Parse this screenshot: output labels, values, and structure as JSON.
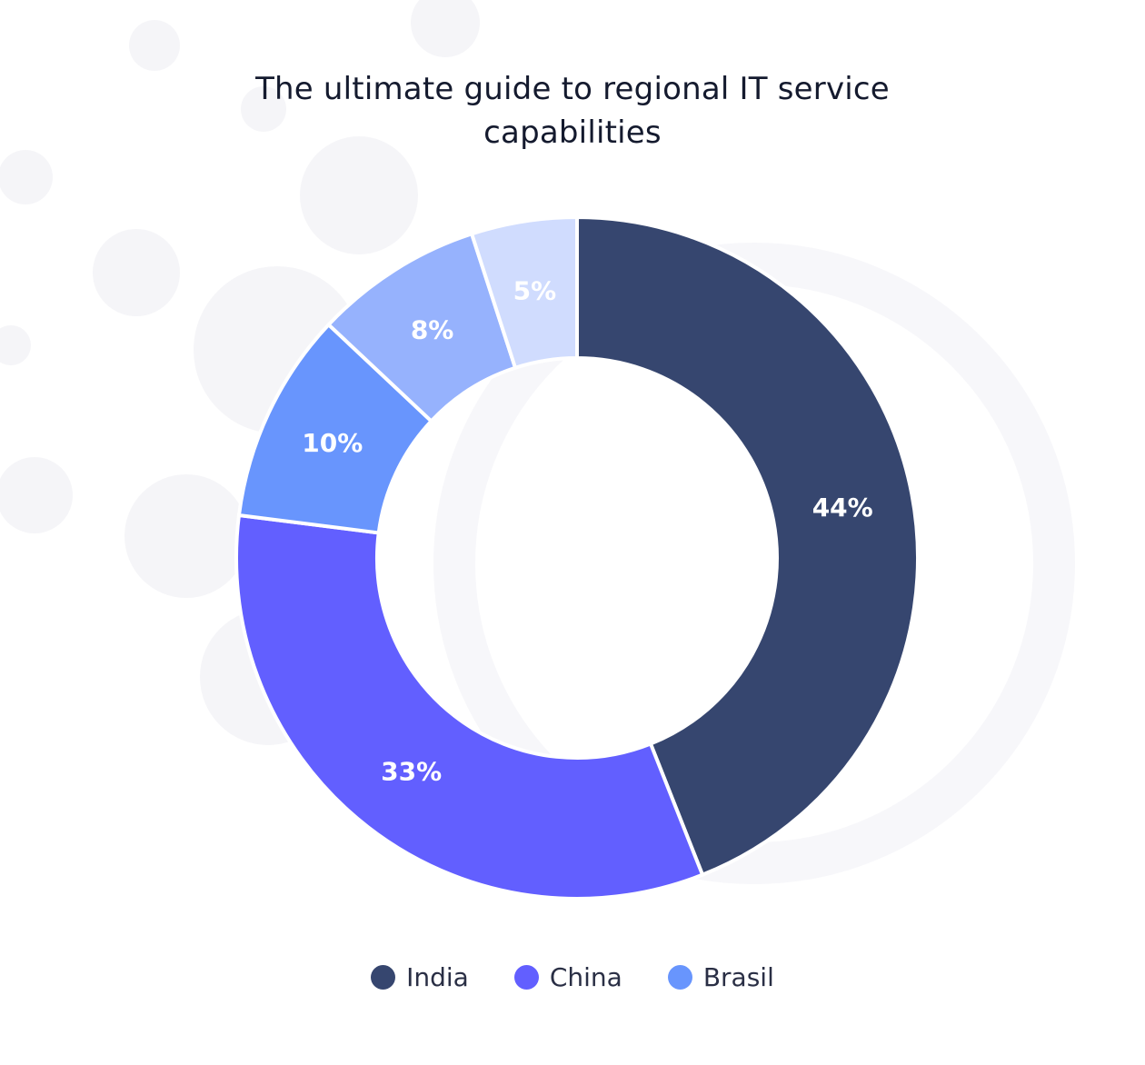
{
  "chart_data": {
    "type": "pie",
    "style": "donut",
    "title": "The ultimate guide to regional IT service capabilities",
    "slices": [
      {
        "value": 44,
        "label": "44%",
        "color": "#36466f"
      },
      {
        "value": 33,
        "label": "33%",
        "color": "#625fff"
      },
      {
        "value": 10,
        "label": "10%",
        "color": "#6895fd"
      },
      {
        "value": 8,
        "label": "8%",
        "color": "#96b2fd"
      },
      {
        "value": 5,
        "label": "5%",
        "color": "#d0dcfe"
      }
    ],
    "legend": [
      {
        "name": "India",
        "color": "#36466f"
      },
      {
        "name": "China",
        "color": "#625fff"
      },
      {
        "name": "Brasil",
        "color": "#6895fd"
      }
    ],
    "legend_position": "bottom",
    "label_color": "#ffffff"
  }
}
